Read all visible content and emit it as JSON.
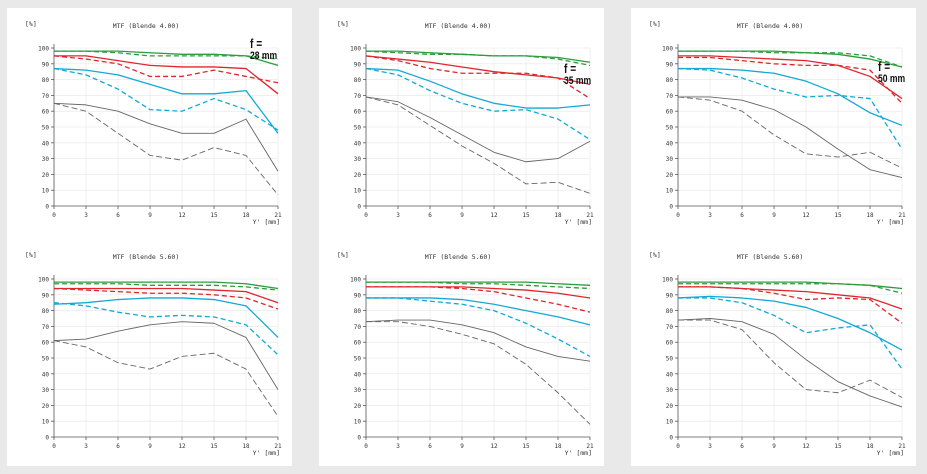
{
  "panels": [
    {
      "focal": {
        "prefix": "f =",
        "value": "28 mm"
      },
      "charts": [
        {
          "title": "MTF (Blende  4.00)",
          "ylabel": "[%]",
          "xlabel": "Y' [mm]",
          "series": [
            {
              "color": "#2a9d3c",
              "style": "solid",
              "values": [
                98,
                98,
                98,
                97,
                96,
                96,
                95,
                89
              ]
            },
            {
              "color": "#2a9d3c",
              "style": "dashed",
              "values": [
                98,
                98,
                97,
                95,
                95,
                95,
                95,
                93
              ]
            },
            {
              "color": "#e0262c",
              "style": "solid",
              "values": [
                95,
                95,
                92,
                89,
                88,
                88,
                87,
                71
              ]
            },
            {
              "color": "#e0262c",
              "style": "dashed",
              "values": [
                95,
                93,
                90,
                82,
                82,
                86,
                82,
                78
              ]
            },
            {
              "color": "#14a8d6",
              "style": "solid",
              "values": [
                87,
                86,
                83,
                77,
                71,
                71,
                73,
                46
              ]
            },
            {
              "color": "#14a8d6",
              "style": "dashed",
              "values": [
                87,
                83,
                74,
                61,
                60,
                68,
                61,
                48
              ]
            },
            {
              "color": "#666666",
              "style": "solid",
              "values": [
                65,
                64,
                60,
                52,
                46,
                46,
                55,
                22
              ]
            },
            {
              "color": "#666666",
              "style": "dashed",
              "values": [
                65,
                60,
                46,
                32,
                29,
                37,
                32,
                7
              ]
            }
          ]
        },
        {
          "title": "MTF (Blende  5.60)",
          "ylabel": "[%]",
          "xlabel": "Y' [mm]",
          "series": [
            {
              "color": "#2a9d3c",
              "style": "solid",
              "values": [
                98,
                98,
                98,
                98,
                98,
                98,
                97,
                94
              ]
            },
            {
              "color": "#2a9d3c",
              "style": "dashed",
              "values": [
                97,
                97,
                97,
                96,
                96,
                96,
                95,
                93
              ]
            },
            {
              "color": "#e0262c",
              "style": "solid",
              "values": [
                94,
                94,
                94,
                94,
                94,
                93,
                92,
                85
              ]
            },
            {
              "color": "#e0262c",
              "style": "dashed",
              "values": [
                94,
                93,
                92,
                91,
                91,
                90,
                88,
                81
              ]
            },
            {
              "color": "#14a8d6",
              "style": "solid",
              "values": [
                84,
                85,
                87,
                88,
                88,
                87,
                83,
                63
              ]
            },
            {
              "color": "#14a8d6",
              "style": "dashed",
              "values": [
                85,
                83,
                79,
                76,
                77,
                76,
                71,
                52
              ]
            },
            {
              "color": "#666666",
              "style": "solid",
              "values": [
                61,
                62,
                67,
                71,
                73,
                72,
                63,
                30
              ]
            },
            {
              "color": "#666666",
              "style": "dashed",
              "values": [
                61,
                57,
                47,
                43,
                51,
                53,
                43,
                13
              ]
            }
          ]
        }
      ]
    },
    {
      "focal": {
        "prefix": "f =",
        "value": "35 mm"
      },
      "charts": [
        {
          "title": "MTF (Blende  4.00)",
          "ylabel": "[%]",
          "xlabel": "Y' [mm]",
          "series": [
            {
              "color": "#2a9d3c",
              "style": "solid",
              "values": [
                98,
                98,
                97,
                96,
                95,
                95,
                94,
                91
              ]
            },
            {
              "color": "#2a9d3c",
              "style": "dashed",
              "values": [
                98,
                97,
                96,
                96,
                95,
                95,
                93,
                89
              ]
            },
            {
              "color": "#e0262c",
              "style": "solid",
              "values": [
                95,
                93,
                91,
                88,
                85,
                83,
                81,
                77
              ]
            },
            {
              "color": "#e0262c",
              "style": "dashed",
              "values": [
                95,
                92,
                87,
                84,
                84,
                84,
                81,
                68
              ]
            },
            {
              "color": "#14a8d6",
              "style": "solid",
              "values": [
                87,
                86,
                79,
                71,
                65,
                62,
                62,
                64
              ]
            },
            {
              "color": "#14a8d6",
              "style": "dashed",
              "values": [
                87,
                83,
                73,
                65,
                60,
                61,
                55,
                42
              ]
            },
            {
              "color": "#666666",
              "style": "solid",
              "values": [
                69,
                66,
                56,
                45,
                34,
                28,
                30,
                41
              ]
            },
            {
              "color": "#666666",
              "style": "dashed",
              "values": [
                69,
                64,
                51,
                38,
                27,
                14,
                15,
                8
              ]
            }
          ]
        },
        {
          "title": "MTF (Blende  5.60)",
          "ylabel": "[%]",
          "xlabel": "Y' [mm]",
          "series": [
            {
              "color": "#2a9d3c",
              "style": "solid",
              "values": [
                98,
                98,
                98,
                98,
                98,
                98,
                97,
                96
              ]
            },
            {
              "color": "#2a9d3c",
              "style": "dashed",
              "values": [
                98,
                98,
                98,
                97,
                97,
                96,
                95,
                94
              ]
            },
            {
              "color": "#e0262c",
              "style": "solid",
              "values": [
                95,
                95,
                95,
                95,
                94,
                93,
                91,
                88
              ]
            },
            {
              "color": "#e0262c",
              "style": "dashed",
              "values": [
                95,
                95,
                95,
                94,
                92,
                88,
                84,
                79
              ]
            },
            {
              "color": "#14a8d6",
              "style": "solid",
              "values": [
                88,
                88,
                88,
                87,
                84,
                80,
                76,
                71
              ]
            },
            {
              "color": "#14a8d6",
              "style": "dashed",
              "values": [
                88,
                88,
                86,
                84,
                80,
                72,
                62,
                51
              ]
            },
            {
              "color": "#666666",
              "style": "solid",
              "values": [
                73,
                74,
                74,
                71,
                66,
                57,
                51,
                48
              ]
            },
            {
              "color": "#666666",
              "style": "dashed",
              "values": [
                73,
                73,
                70,
                65,
                59,
                46,
                28,
                8
              ]
            }
          ]
        }
      ]
    },
    {
      "focal": {
        "prefix": "f =",
        "value": "50 mm"
      },
      "charts": [
        {
          "title": "MTF (Blende  4.00)",
          "ylabel": "[%]",
          "xlabel": "Y' [mm]",
          "series": [
            {
              "color": "#2a9d3c",
              "style": "solid",
              "values": [
                98,
                98,
                98,
                98,
                97,
                96,
                93,
                88
              ]
            },
            {
              "color": "#2a9d3c",
              "style": "dashed",
              "values": [
                98,
                98,
                98,
                97,
                97,
                97,
                95,
                88
              ]
            },
            {
              "color": "#e0262c",
              "style": "solid",
              "values": [
                95,
                95,
                94,
                93,
                92,
                89,
                82,
                68
              ]
            },
            {
              "color": "#e0262c",
              "style": "dashed",
              "values": [
                94,
                94,
                92,
                90,
                89,
                89,
                86,
                65
              ]
            },
            {
              "color": "#14a8d6",
              "style": "solid",
              "values": [
                87,
                87,
                86,
                84,
                79,
                71,
                59,
                51
              ]
            },
            {
              "color": "#14a8d6",
              "style": "dashed",
              "values": [
                87,
                86,
                81,
                74,
                69,
                70,
                68,
                36
              ]
            },
            {
              "color": "#666666",
              "style": "solid",
              "values": [
                69,
                69,
                67,
                61,
                50,
                36,
                23,
                18
              ]
            },
            {
              "color": "#666666",
              "style": "dashed",
              "values": [
                69,
                67,
                60,
                45,
                33,
                31,
                34,
                24
              ]
            }
          ]
        },
        {
          "title": "MTF (Blende  5.60)",
          "ylabel": "[%]",
          "xlabel": "Y' [mm]",
          "series": [
            {
              "color": "#2a9d3c",
              "style": "solid",
              "values": [
                98,
                98,
                98,
                98,
                98,
                97,
                96,
                94
              ]
            },
            {
              "color": "#2a9d3c",
              "style": "dashed",
              "values": [
                97,
                97,
                97,
                97,
                97,
                97,
                96,
                91
              ]
            },
            {
              "color": "#e0262c",
              "style": "solid",
              "values": [
                95,
                95,
                94,
                93,
                92,
                90,
                88,
                81
              ]
            },
            {
              "color": "#e0262c",
              "style": "dashed",
              "values": [
                95,
                95,
                94,
                91,
                87,
                88,
                87,
                72
              ]
            },
            {
              "color": "#14a8d6",
              "style": "solid",
              "values": [
                88,
                89,
                88,
                86,
                82,
                75,
                66,
                55
              ]
            },
            {
              "color": "#14a8d6",
              "style": "dashed",
              "values": [
                88,
                88,
                85,
                77,
                66,
                69,
                71,
                43
              ]
            },
            {
              "color": "#666666",
              "style": "solid",
              "values": [
                74,
                75,
                73,
                65,
                49,
                35,
                26,
                19
              ]
            },
            {
              "color": "#666666",
              "style": "dashed",
              "values": [
                74,
                74,
                68,
                47,
                30,
                28,
                36,
                25
              ]
            }
          ]
        }
      ]
    }
  ],
  "chart_data": [
    {
      "type": "line",
      "title": "MTF (Blende  4.00)",
      "xlabel": "Y' [mm]",
      "ylabel": "[%]",
      "x": [
        0,
        3,
        6,
        9,
        12,
        15,
        18,
        21
      ],
      "xlim": [
        0,
        21
      ],
      "ylim": [
        0,
        100
      ],
      "annotation": "f = 28 mm"
    },
    {
      "type": "line",
      "title": "MTF (Blende  5.60)",
      "xlabel": "Y' [mm]",
      "ylabel": "[%]",
      "x": [
        0,
        3,
        6,
        9,
        12,
        15,
        18,
        21
      ],
      "xlim": [
        0,
        21
      ],
      "ylim": [
        0,
        100
      ]
    },
    {
      "type": "line",
      "title": "MTF (Blende  4.00)",
      "xlabel": "Y' [mm]",
      "ylabel": "[%]",
      "x": [
        0,
        3,
        6,
        9,
        12,
        15,
        18,
        21
      ],
      "xlim": [
        0,
        21
      ],
      "ylim": [
        0,
        100
      ],
      "annotation": "f = 35 mm"
    },
    {
      "type": "line",
      "title": "MTF (Blende  5.60)",
      "xlabel": "Y' [mm]",
      "ylabel": "[%]",
      "x": [
        0,
        3,
        6,
        9,
        12,
        15,
        18,
        21
      ],
      "xlim": [
        0,
        21
      ],
      "ylim": [
        0,
        100
      ]
    },
    {
      "type": "line",
      "title": "MTF (Blende  4.00)",
      "xlabel": "Y' [mm]",
      "ylabel": "[%]",
      "x": [
        0,
        3,
        6,
        9,
        12,
        15,
        18,
        21
      ],
      "xlim": [
        0,
        21
      ],
      "ylim": [
        0,
        100
      ],
      "annotation": "f = 50 mm"
    },
    {
      "type": "line",
      "title": "MTF (Blende  5.60)",
      "xlabel": "Y' [mm]",
      "ylabel": "[%]",
      "x": [
        0,
        3,
        6,
        9,
        12,
        15,
        18,
        21
      ],
      "xlim": [
        0,
        21
      ],
      "ylim": [
        0,
        100
      ]
    }
  ],
  "axis": {
    "x_ticks": [
      "0",
      "3",
      "6",
      "9",
      "12",
      "15",
      "18",
      "21"
    ],
    "x_values": [
      0,
      3,
      6,
      9,
      12,
      15,
      18,
      21
    ],
    "y_ticks": [
      "0",
      "10",
      "20",
      "30",
      "40",
      "50",
      "60",
      "70",
      "80",
      "90",
      "100"
    ],
    "y_values": [
      0,
      10,
      20,
      30,
      40,
      50,
      60,
      70,
      80,
      90,
      100
    ]
  }
}
